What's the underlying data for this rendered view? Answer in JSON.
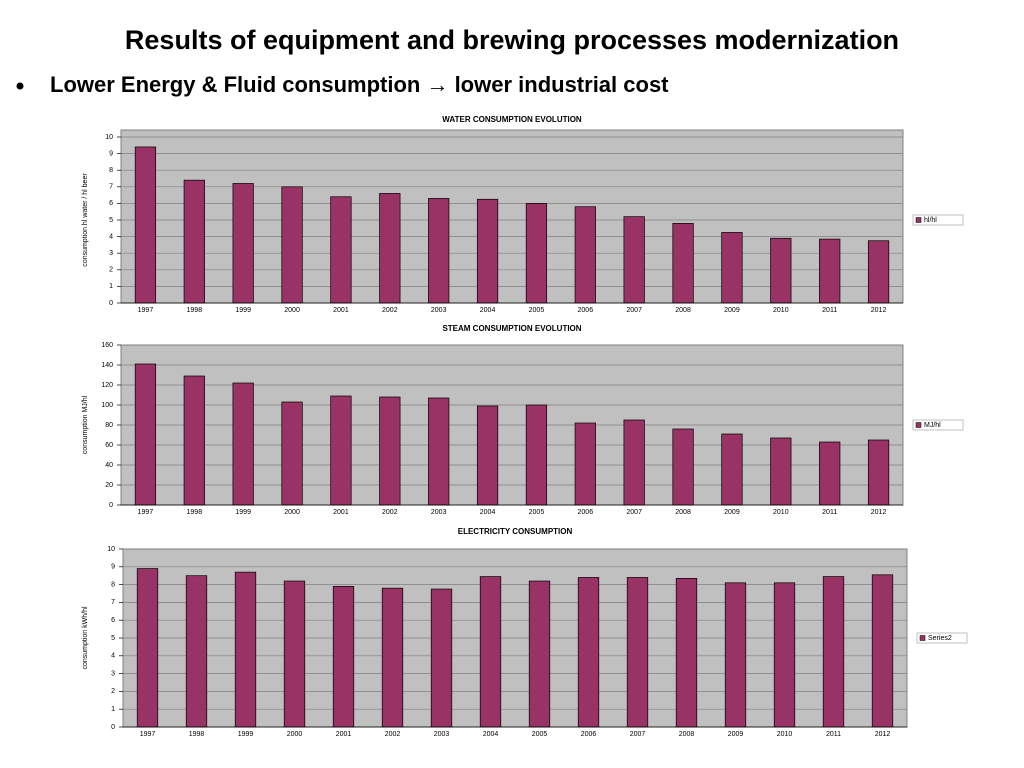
{
  "title": "Results of equipment and brewing processes modernization",
  "bullet": "Lower Energy & Fluid consumption → lower industrial cost",
  "chart_data": [
    {
      "type": "bar",
      "title": "WATER CONSUMPTION EVOLUTION",
      "y_label": "consumption hl water / hl beer",
      "categories": [
        "1997",
        "1998",
        "1999",
        "2000",
        "2001",
        "2002",
        "2003",
        "2004",
        "2005",
        "2006",
        "2007",
        "2008",
        "2009",
        "2010",
        "2011",
        "2012"
      ],
      "series": [
        {
          "name": "hl/hl",
          "color": "#993366",
          "values": [
            9.4,
            7.4,
            7.2,
            7.0,
            6.4,
            6.6,
            6.3,
            6.25,
            6.0,
            5.8,
            5.2,
            4.8,
            4.25,
            3.9,
            3.85,
            3.75
          ]
        }
      ],
      "ylim": [
        0,
        10
      ],
      "yticks": [
        0,
        1,
        2,
        3,
        4,
        5,
        6,
        7,
        8,
        9,
        10
      ],
      "grid": true,
      "legend": "right"
    },
    {
      "type": "bar",
      "title": "STEAM CONSUMPTION EVOLUTION",
      "y_label": "consumption MJ/hl",
      "categories": [
        "1997",
        "1998",
        "1999",
        "2000",
        "2001",
        "2002",
        "2003",
        "2004",
        "2005",
        "2006",
        "2007",
        "2008",
        "2009",
        "2010",
        "2011",
        "2012"
      ],
      "series": [
        {
          "name": "MJ/hl",
          "color": "#993366",
          "values": [
            141,
            129,
            122,
            103,
            109,
            108,
            107,
            99,
            100,
            82,
            85,
            76,
            71,
            67,
            63,
            65
          ]
        }
      ],
      "ylim": [
        0,
        160
      ],
      "yticks": [
        0,
        20,
        40,
        60,
        80,
        100,
        120,
        140,
        160
      ],
      "grid": true,
      "legend": "right"
    },
    {
      "type": "bar",
      "title": "ELECTRICITY CONSUMPTION",
      "y_label": "consumption kWh/hl",
      "categories": [
        "1997",
        "1998",
        "1999",
        "2000",
        "2001",
        "2002",
        "2003",
        "2004",
        "2005",
        "2006",
        "2007",
        "2008",
        "2009",
        "2010",
        "2011",
        "2012"
      ],
      "series": [
        {
          "name": "Series2",
          "color": "#993366",
          "values": [
            8.9,
            8.5,
            8.7,
            8.2,
            7.9,
            7.8,
            7.75,
            8.45,
            8.2,
            8.4,
            8.4,
            8.35,
            8.1,
            8.1,
            8.45,
            8.55
          ]
        }
      ],
      "ylim": [
        0,
        10
      ],
      "yticks": [
        0,
        1,
        2,
        3,
        4,
        5,
        6,
        7,
        8,
        9,
        10
      ],
      "grid": true,
      "legend": "right"
    }
  ]
}
